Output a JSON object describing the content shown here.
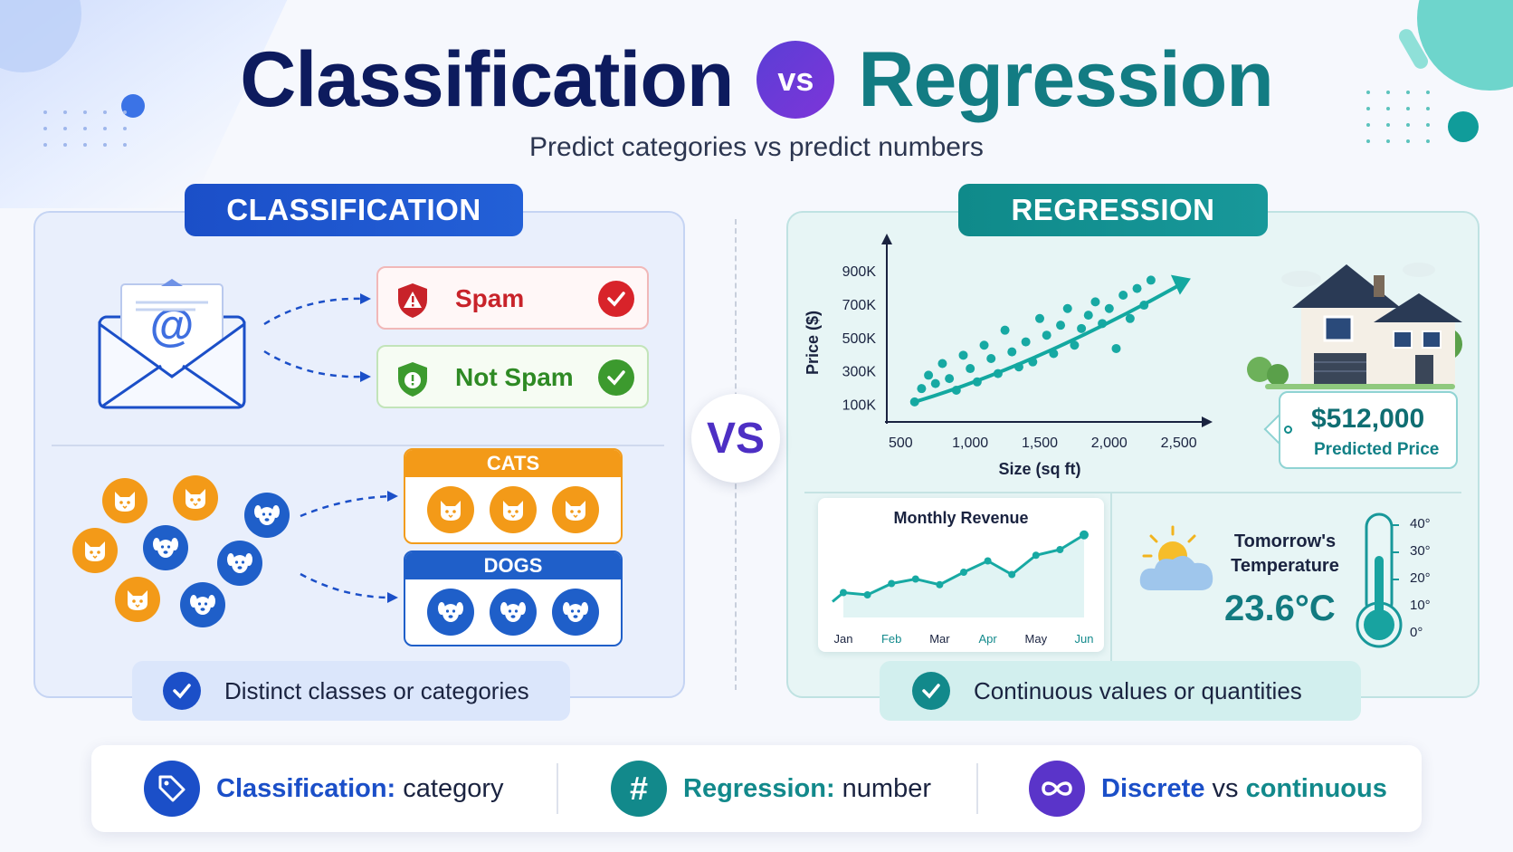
{
  "header": {
    "title_left": "Classification",
    "vs_badge": "vs",
    "title_right": "Regression",
    "subtitle": "Predict categories vs predict numbers"
  },
  "classification": {
    "heading": "CLASSIFICATION",
    "email_labels": [
      {
        "label": "Spam",
        "icon": "warning-shield-icon",
        "color": "#c8232a"
      },
      {
        "label": "Not Spam",
        "icon": "safe-shield-icon",
        "color": "#2e8a24"
      }
    ],
    "pet_groups": [
      {
        "label": "CATS",
        "icon": "cat-icon",
        "color": "#f39a18"
      },
      {
        "label": "DOGS",
        "icon": "dog-icon",
        "color": "#1f5fc9"
      }
    ],
    "summary": "Distinct classes or categories"
  },
  "center_vs": "VS",
  "regression": {
    "heading": "REGRESSION",
    "house_chart": {
      "ylabel": "Price ($)",
      "xlabel": "Size (sq ft)",
      "yticks": [
        "900K",
        "700K",
        "500K",
        "300K",
        "100K"
      ],
      "xticks": [
        "500",
        "1,000",
        "1,500",
        "2,000",
        "2,500"
      ]
    },
    "predicted_price": {
      "value": "$512,000",
      "label": "Predicted Price"
    },
    "revenue": {
      "title": "Monthly Revenue",
      "months": [
        "Jan",
        "Feb",
        "Mar",
        "Apr",
        "May",
        "Jun"
      ]
    },
    "temperature": {
      "title_line1": "Tomorrow's",
      "title_line2": "Temperature",
      "value": "23.6°C",
      "scale": [
        "40°",
        "30°",
        "20°",
        "10°",
        "0°"
      ]
    },
    "summary": "Continuous values or quantities"
  },
  "bottom_bar": [
    {
      "icon": "tag-icon",
      "highlight": "Classification:",
      "rest": " category",
      "color": "#1b4fc8"
    },
    {
      "icon": "hash-icon",
      "highlight": "Regression:",
      "rest": " number",
      "color": "#12898b"
    },
    {
      "icon": "infinity-icon",
      "highlight": "Discrete",
      "middle": " vs ",
      "highlight2": "continuous",
      "color": "#5a34c9"
    }
  ],
  "chart_data": [
    {
      "type": "scatter",
      "title": "",
      "xlabel": "Size (sq ft)",
      "ylabel": "Price ($)",
      "xlim": [
        400,
        2600
      ],
      "ylim": [
        0,
        950000
      ],
      "x": [
        600,
        650,
        700,
        750,
        800,
        850,
        900,
        950,
        1000,
        1050,
        1100,
        1150,
        1200,
        1250,
        1300,
        1350,
        1400,
        1450,
        1500,
        1550,
        1600,
        1650,
        1700,
        1750,
        1800,
        1850,
        1900,
        1950,
        2000,
        2050,
        2100,
        2150,
        2200,
        2250,
        2300
      ],
      "y": [
        120000,
        200000,
        280000,
        230000,
        350000,
        260000,
        190000,
        400000,
        320000,
        240000,
        460000,
        380000,
        290000,
        550000,
        420000,
        330000,
        480000,
        360000,
        620000,
        520000,
        410000,
        580000,
        680000,
        460000,
        560000,
        640000,
        720000,
        590000,
        680000,
        440000,
        760000,
        620000,
        800000,
        700000,
        850000
      ],
      "trend": {
        "x": [
          600,
          2300
        ],
        "y": [
          120000,
          740000
        ]
      }
    },
    {
      "type": "line",
      "title": "Monthly Revenue",
      "categories": [
        "Jan",
        "Feb",
        "Mar",
        "Apr",
        "May",
        "Jun"
      ],
      "x": [
        0,
        0.5,
        1,
        1.5,
        2,
        2.5,
        3,
        3.5,
        4,
        4.5,
        5
      ],
      "values": [
        22,
        20,
        30,
        34,
        29,
        40,
        50,
        38,
        55,
        60,
        73
      ]
    }
  ]
}
